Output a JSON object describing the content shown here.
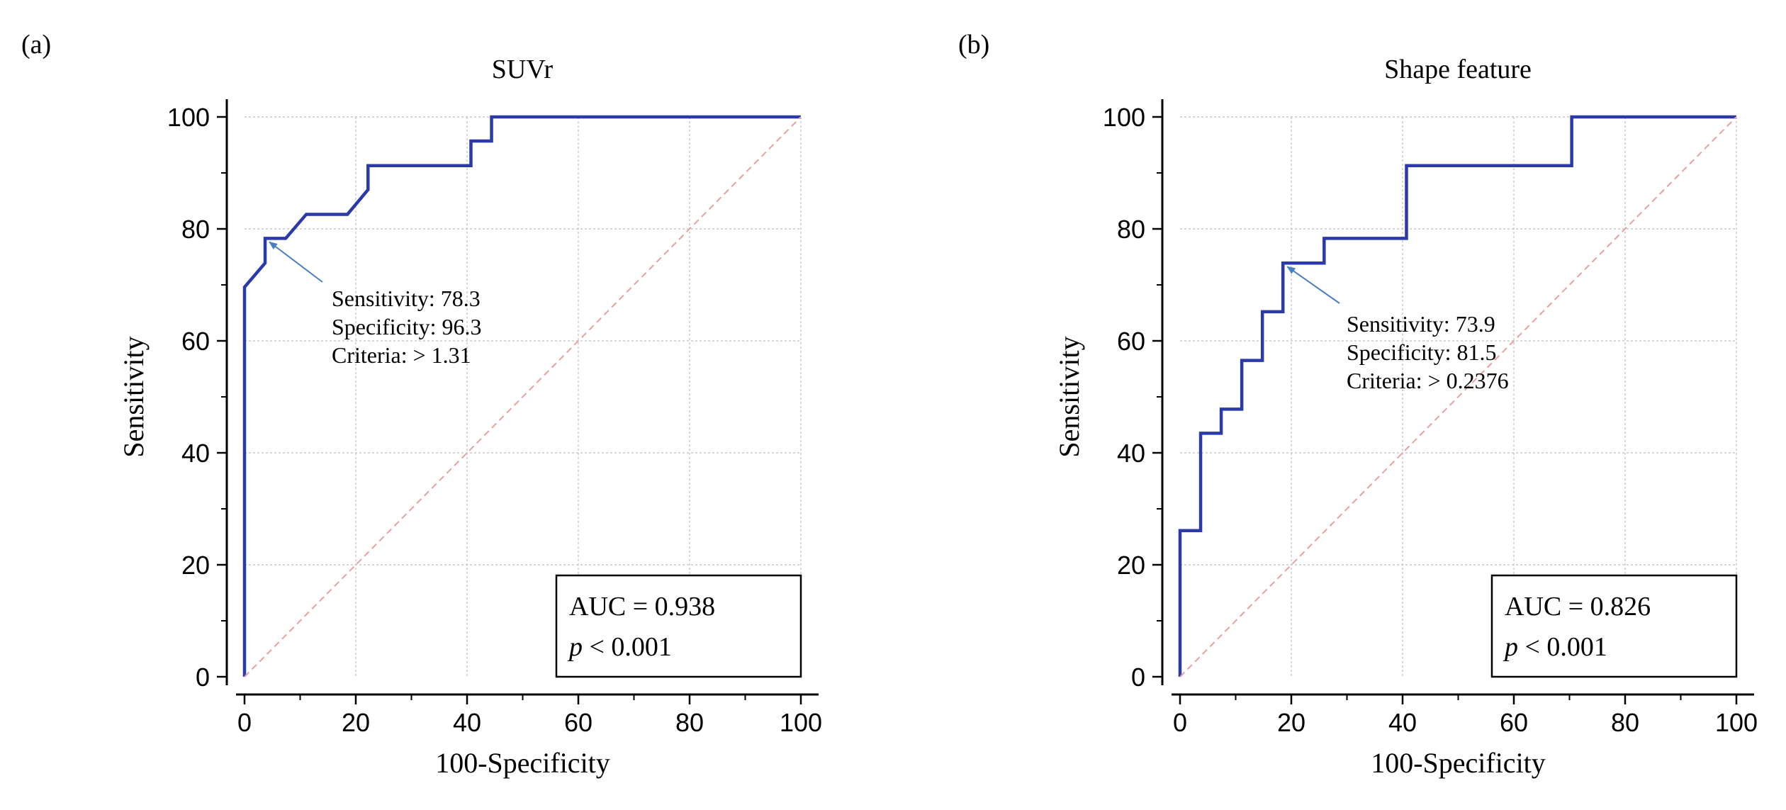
{
  "figure": {
    "panels": [
      "(a)",
      "(b)"
    ]
  },
  "chart_data": [
    {
      "type": "line",
      "panel_label": "(a)",
      "title": "SUVr",
      "xlabel": "100-Specificity",
      "ylabel": "Sensitivity",
      "xlim": [
        0,
        100
      ],
      "ylim": [
        0,
        100
      ],
      "xticks": [
        "0",
        "20",
        "40",
        "60",
        "80",
        "100"
      ],
      "yticks": [
        "0",
        "20",
        "40",
        "60",
        "80",
        "100"
      ],
      "grid": true,
      "series": [
        {
          "color": "#2b3aa6",
          "x": [
            0,
            0,
            3.7,
            3.7,
            7.4,
            7.4,
            11.1,
            11.1,
            18.5,
            18.5,
            22.2,
            22.2,
            40.7,
            40.7,
            44.4,
            44.4,
            100
          ],
          "y": [
            0,
            69.6,
            73.9,
            78.3,
            78.3,
            78.3,
            82.6,
            82.6,
            82.6,
            82.6,
            87.0,
            91.3,
            91.3,
            95.7,
            95.7,
            100,
            100
          ]
        },
        {
          "color": "#e8a0a0",
          "style": "dashed",
          "x": [
            0,
            100
          ],
          "y": [
            0,
            100
          ]
        }
      ],
      "annotation": {
        "point": [
          3.7,
          78.3
        ],
        "lines": [
          "Sensitivity: 78.3",
          "Specificity: 96.3",
          "Criteria: > 1.31"
        ]
      },
      "stats": {
        "auc": "AUC = 0.938",
        "p_symbol": "p",
        "p_value": " < 0.001"
      }
    },
    {
      "type": "line",
      "panel_label": "(b)",
      "title": "Shape feature",
      "xlabel": "100-Specificity",
      "ylabel": "Sensitivity",
      "xlim": [
        0,
        100
      ],
      "ylim": [
        0,
        100
      ],
      "xticks": [
        "0",
        "20",
        "40",
        "60",
        "80",
        "100"
      ],
      "yticks": [
        "0",
        "20",
        "40",
        "60",
        "80",
        "100"
      ],
      "grid": true,
      "series": [
        {
          "color": "#2b3aa6",
          "x": [
            0,
            0,
            3.7,
            3.7,
            7.4,
            7.4,
            11.1,
            11.1,
            14.8,
            14.8,
            18.5,
            18.5,
            25.9,
            25.9,
            40.7,
            40.7,
            70.4,
            70.4,
            100
          ],
          "y": [
            0,
            26.1,
            26.1,
            43.5,
            43.5,
            47.8,
            47.8,
            56.5,
            56.5,
            65.2,
            65.2,
            73.9,
            73.9,
            78.3,
            78.3,
            91.3,
            91.3,
            100,
            100
          ]
        },
        {
          "color": "#e8a0a0",
          "style": "dashed",
          "x": [
            0,
            100
          ],
          "y": [
            0,
            100
          ]
        }
      ],
      "annotation": {
        "point": [
          18.5,
          73.9
        ],
        "lines": [
          "Sensitivity: 73.9",
          "Specificity: 81.5",
          "Criteria: > 0.2376"
        ]
      },
      "stats": {
        "auc": "AUC = 0.826",
        "p_symbol": "p",
        "p_value": " < 0.001"
      }
    }
  ]
}
